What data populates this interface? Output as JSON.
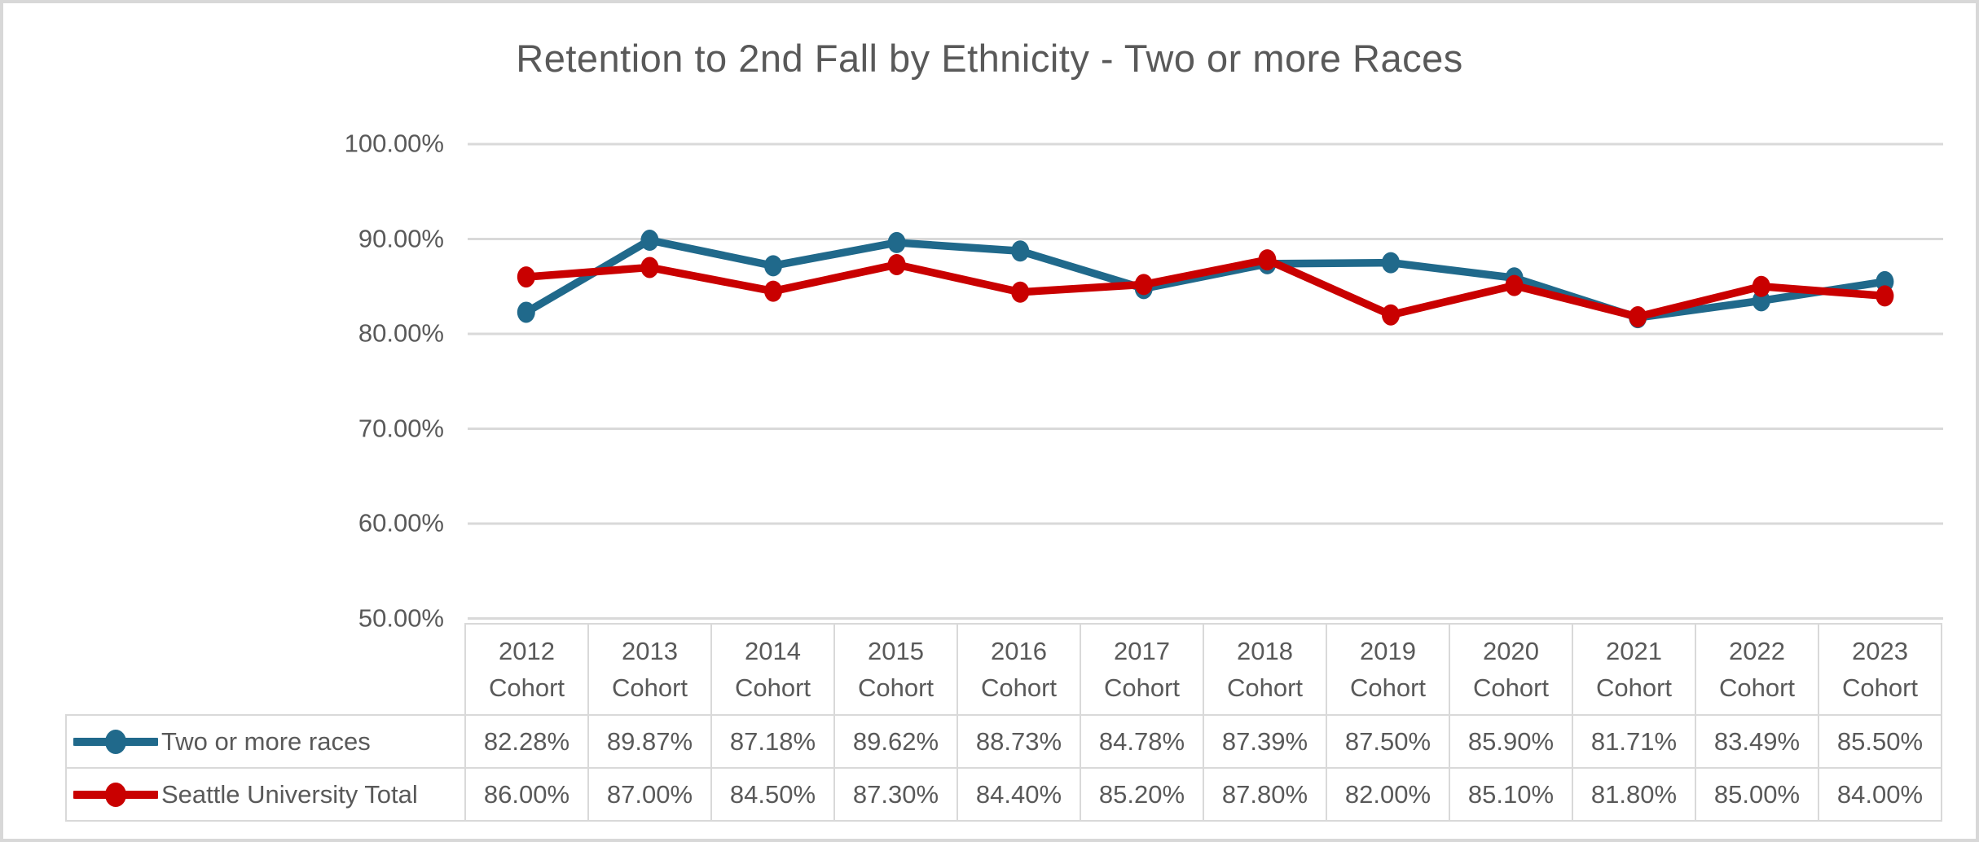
{
  "chart_data": {
    "type": "line",
    "title": "Retention to 2nd Fall by Ethnicity - Two or more Races",
    "categories": [
      "2012",
      "2013",
      "2014",
      "2015",
      "2016",
      "2017",
      "2018",
      "2019",
      "2020",
      "2021",
      "2022",
      "2023"
    ],
    "category_suffix": "Cohort",
    "yticks": [
      "100.00%",
      "90.00%",
      "80.00%",
      "70.00%",
      "60.00%",
      "50.00%"
    ],
    "ylim": [
      50,
      100
    ],
    "grid": "horizontal",
    "gridline_color": "#d9d9d9",
    "text_color": "#595959",
    "legend_position": "table-left",
    "series": [
      {
        "name": "Two or more races",
        "color": "#20698b",
        "values": [
          "82.28%",
          "89.87%",
          "87.18%",
          "89.62%",
          "88.73%",
          "84.78%",
          "87.39%",
          "87.50%",
          "85.90%",
          "81.71%",
          "83.49%",
          "85.50%"
        ]
      },
      {
        "name": "Seattle University Total",
        "color": "#c90000",
        "values": [
          "86.00%",
          "87.00%",
          "84.50%",
          "87.30%",
          "84.40%",
          "85.20%",
          "87.80%",
          "82.00%",
          "85.10%",
          "81.80%",
          "85.00%",
          "84.00%"
        ]
      }
    ]
  }
}
